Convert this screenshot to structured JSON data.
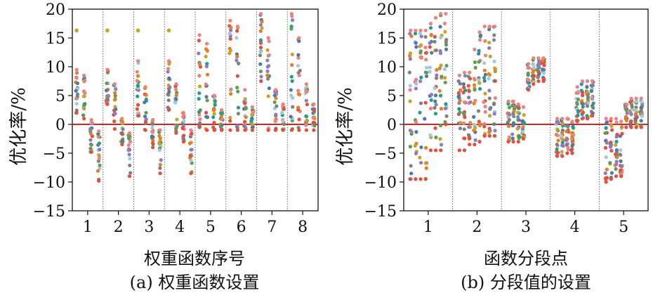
{
  "chart_data": [
    {
      "type": "scatter",
      "panel": "a",
      "caption": "(a) 权重函数设置",
      "xlabel": "权重函数序号",
      "ylabel": "优化率/%",
      "categories": [
        "1",
        "2",
        "3",
        "4",
        "5",
        "6",
        "7",
        "8"
      ],
      "y_ticks": [
        "20",
        "15",
        "10",
        "5",
        "0",
        "−5",
        "−10",
        "−15"
      ],
      "ylim": [
        -15,
        20
      ],
      "baseline": 0,
      "grid": false,
      "group_separators": "dotted vertical lines between categories",
      "subcolumns_per_category": 4,
      "groups": [
        {
          "category": "1",
          "columns": [
            {
              "min": 2,
              "max": 9.5,
              "outlier": 16.3
            },
            {
              "min": 1,
              "max": 8.5
            },
            {
              "min": -4.8,
              "max": 0.8
            },
            {
              "min": -9.8,
              "max": -1.2
            }
          ]
        },
        {
          "category": "2",
          "columns": [
            {
              "min": 3.5,
              "max": 9.5,
              "outlier": 16.3
            },
            {
              "min": -0.8,
              "max": 7
            },
            {
              "min": -3.5,
              "max": 1
            },
            {
              "min": -9,
              "max": -1.5
            }
          ]
        },
        {
          "category": "3",
          "columns": [
            {
              "min": 1.5,
              "max": 11,
              "outlier": 16.3
            },
            {
              "min": -1,
              "max": 6.5
            },
            {
              "min": -4,
              "max": 0.8
            },
            {
              "min": -8.5,
              "max": -1
            }
          ]
        },
        {
          "category": "4",
          "columns": [
            {
              "min": 2.5,
              "max": 11,
              "outlier": 16.3
            },
            {
              "min": -1.5,
              "max": 7
            },
            {
              "min": -3,
              "max": 2
            },
            {
              "min": -8.5,
              "max": -1
            }
          ]
        },
        {
          "category": "5",
          "columns": [
            {
              "min": -0.5,
              "max": 15.5
            },
            {
              "min": -1,
              "max": 14
            },
            {
              "min": -1,
              "max": 5
            },
            {
              "min": -1,
              "max": 2.5
            }
          ]
        },
        {
          "category": "6",
          "columns": [
            {
              "min": -1,
              "max": 18
            },
            {
              "min": -1,
              "max": 17
            },
            {
              "min": -1,
              "max": 6
            },
            {
              "min": -1,
              "max": 3
            }
          ]
        },
        {
          "category": "7",
          "columns": [
            {
              "min": 7.5,
              "max": 19.2
            },
            {
              "min": -1,
              "max": 15
            },
            {
              "min": -1,
              "max": 6
            },
            {
              "min": -1,
              "max": 3.5
            }
          ]
        },
        {
          "category": "8",
          "columns": [
            {
              "min": -1,
              "max": 19.2
            },
            {
              "min": -1,
              "max": 15
            },
            {
              "min": -1,
              "max": 7
            },
            {
              "min": -1,
              "max": 3.5
            }
          ]
        }
      ]
    },
    {
      "type": "scatter",
      "panel": "b",
      "caption": "(b) 分段值的设置",
      "xlabel": "函数分段点",
      "ylabel": "优化率/%",
      "categories": [
        "1",
        "2",
        "3",
        "4",
        "5"
      ],
      "y_ticks": [
        "20",
        "15",
        "10",
        "5",
        "0",
        "−5",
        "−10",
        "−15"
      ],
      "ylim": [
        -15,
        20
      ],
      "baseline": 0,
      "grid": false,
      "group_separators": "dotted vertical lines between categories",
      "subcolumns_per_category": 8,
      "groups": [
        {
          "category": "1",
          "columns": [
            {
              "min": -9.5,
              "max": 16.3
            },
            {
              "min": -9.5,
              "max": 16.3
            },
            {
              "min": -9.5,
              "max": 16.3
            },
            {
              "min": -9.5,
              "max": 16.3
            },
            {
              "min": -4.5,
              "max": 17.5
            },
            {
              "min": -4.5,
              "max": 18.5
            },
            {
              "min": -4.5,
              "max": 19.2
            },
            {
              "min": 0,
              "max": 19.2
            }
          ]
        },
        {
          "category": "2",
          "columns": [
            {
              "min": -4.5,
              "max": 8.5
            },
            {
              "min": -4.5,
              "max": 9
            },
            {
              "min": -3.5,
              "max": 9
            },
            {
              "min": -3.5,
              "max": 13
            },
            {
              "min": -3,
              "max": 16
            },
            {
              "min": -2,
              "max": 17
            },
            {
              "min": -2,
              "max": 17
            },
            {
              "min": -2,
              "max": 17
            }
          ]
        },
        {
          "category": "3",
          "columns": [
            {
              "min": -3,
              "max": 4
            },
            {
              "min": -3,
              "max": 4
            },
            {
              "min": -3,
              "max": 3.5
            },
            {
              "min": -2.5,
              "max": 3
            },
            {
              "min": 6,
              "max": 10.5
            },
            {
              "min": 7,
              "max": 11.5
            },
            {
              "min": 7.5,
              "max": 11.5
            },
            {
              "min": 7.5,
              "max": 11.5
            }
          ]
        },
        {
          "category": "4",
          "columns": [
            {
              "min": -5.5,
              "max": 1
            },
            {
              "min": -5.5,
              "max": 1
            },
            {
              "min": -5,
              "max": 1
            },
            {
              "min": -5,
              "max": 0.5
            },
            {
              "min": 0.5,
              "max": 6.5
            },
            {
              "min": 1,
              "max": 7.5
            },
            {
              "min": 1,
              "max": 7.5
            },
            {
              "min": 1.5,
              "max": 7.5
            }
          ]
        },
        {
          "category": "5",
          "columns": [
            {
              "min": -10,
              "max": 1
            },
            {
              "min": -9.5,
              "max": 1
            },
            {
              "min": -9,
              "max": 1
            },
            {
              "min": -9,
              "max": 0.5
            },
            {
              "min": -0.5,
              "max": 3.5
            },
            {
              "min": -0.5,
              "max": 4.5
            },
            {
              "min": -0.5,
              "max": 4.5
            },
            {
              "min": -0.5,
              "max": 4.5
            }
          ]
        }
      ]
    }
  ],
  "series_colors": [
    "#e74c3c",
    "#f08080",
    "#808080",
    "#1f9e89",
    "#4e79a7",
    "#c9a227",
    "#e67e22",
    "#9ecae1",
    "#8e7cc3",
    "#59a14f"
  ],
  "baseline_color": "#c62828",
  "outlier_color": "#c9a227"
}
